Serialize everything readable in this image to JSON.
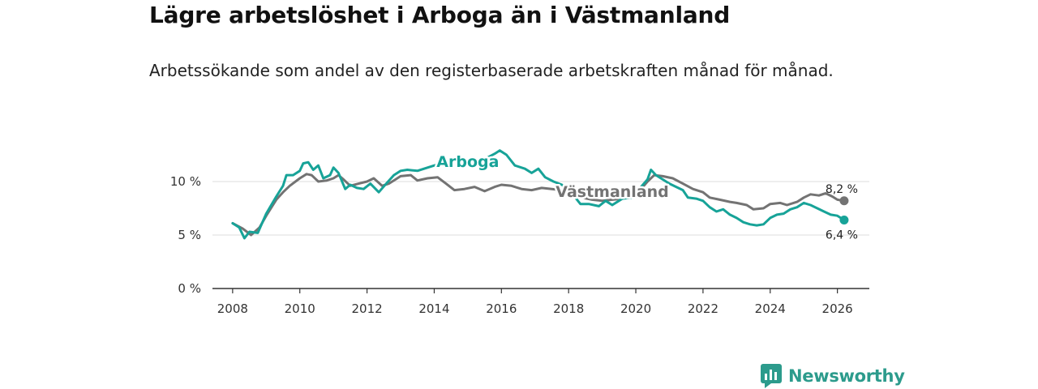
{
  "header": {
    "title": "Lägre arbetslöshet i Arboga än i Västmanland",
    "subtitle": "Arbetssökande som andel av den registerbaserade arbetskraften månad för månad."
  },
  "brand": {
    "name": "Newsworthy",
    "icon": "bar-chart-speech-icon",
    "color": "#2c9b8c"
  },
  "chart_data": {
    "type": "line",
    "title": "Lägre arbetslöshet i Arboga än i Västmanland",
    "subtitle": "Arbetssökande som andel av den registerbaserade arbetskraften månad för månad.",
    "xlabel": "",
    "ylabel": "",
    "xlim": [
      2007.4,
      2026.95
    ],
    "ylim": [
      0,
      10
    ],
    "x_ticks": [
      2008,
      2010,
      2012,
      2014,
      2016,
      2018,
      2020,
      2022,
      2024,
      2026
    ],
    "x_tick_labels": [
      "2008",
      "2010",
      "2012",
      "2014",
      "2016",
      "2018",
      "2020",
      "2022",
      "2024",
      "2026"
    ],
    "y_ticks": [
      0,
      5,
      10
    ],
    "y_tick_labels": [
      "0 %",
      "5 %",
      "10 %"
    ],
    "grid": "horizontal",
    "series": [
      {
        "name": "Arboga",
        "color": "#17a398",
        "end_label": "6,4 %",
        "points": [
          [
            2008.0,
            6.1
          ],
          [
            2008.2,
            5.7
          ],
          [
            2008.35,
            4.7
          ],
          [
            2008.5,
            5.3
          ],
          [
            2008.75,
            5.2
          ],
          [
            2009.0,
            7.0
          ],
          [
            2009.3,
            8.6
          ],
          [
            2009.5,
            9.6
          ],
          [
            2009.6,
            10.6
          ],
          [
            2009.8,
            10.6
          ],
          [
            2010.0,
            11.0
          ],
          [
            2010.1,
            11.7
          ],
          [
            2010.25,
            11.8
          ],
          [
            2010.4,
            11.1
          ],
          [
            2010.55,
            11.5
          ],
          [
            2010.7,
            10.3
          ],
          [
            2010.9,
            10.6
          ],
          [
            2011.0,
            11.3
          ],
          [
            2011.15,
            10.8
          ],
          [
            2011.35,
            9.3
          ],
          [
            2011.5,
            9.7
          ],
          [
            2011.7,
            9.4
          ],
          [
            2011.9,
            9.3
          ],
          [
            2012.1,
            9.8
          ],
          [
            2012.35,
            9.0
          ],
          [
            2012.6,
            9.9
          ],
          [
            2012.8,
            10.6
          ],
          [
            2013.0,
            11.0
          ],
          [
            2013.2,
            11.1
          ],
          [
            2013.5,
            11.0
          ],
          [
            2013.8,
            11.3
          ],
          [
            2014.0,
            11.5
          ],
          [
            2014.4,
            11.8
          ],
          [
            2014.8,
            12.1
          ],
          [
            2015.0,
            11.9
          ],
          [
            2015.2,
            11.7
          ],
          [
            2015.5,
            12.1
          ],
          [
            2015.8,
            12.6
          ],
          [
            2015.95,
            12.9
          ],
          [
            2016.15,
            12.5
          ],
          [
            2016.4,
            11.5
          ],
          [
            2016.7,
            11.2
          ],
          [
            2016.9,
            10.8
          ],
          [
            2017.1,
            11.2
          ],
          [
            2017.3,
            10.4
          ],
          [
            2017.55,
            10.0
          ],
          [
            2017.8,
            9.7
          ],
          [
            2018.0,
            9.2
          ],
          [
            2018.2,
            8.5
          ],
          [
            2018.35,
            7.9
          ],
          [
            2018.6,
            7.9
          ],
          [
            2018.9,
            7.7
          ],
          [
            2019.1,
            8.2
          ],
          [
            2019.3,
            7.8
          ],
          [
            2019.6,
            8.4
          ],
          [
            2019.9,
            8.5
          ],
          [
            2020.1,
            9.3
          ],
          [
            2020.35,
            10.2
          ],
          [
            2020.45,
            11.1
          ],
          [
            2020.6,
            10.6
          ],
          [
            2020.8,
            10.2
          ],
          [
            2021.0,
            9.8
          ],
          [
            2021.2,
            9.5
          ],
          [
            2021.4,
            9.2
          ],
          [
            2021.55,
            8.5
          ],
          [
            2021.8,
            8.4
          ],
          [
            2022.0,
            8.2
          ],
          [
            2022.2,
            7.6
          ],
          [
            2022.4,
            7.2
          ],
          [
            2022.6,
            7.4
          ],
          [
            2022.8,
            6.9
          ],
          [
            2023.0,
            6.6
          ],
          [
            2023.2,
            6.2
          ],
          [
            2023.4,
            6.0
          ],
          [
            2023.6,
            5.9
          ],
          [
            2023.8,
            6.0
          ],
          [
            2024.0,
            6.6
          ],
          [
            2024.2,
            6.9
          ],
          [
            2024.4,
            7.0
          ],
          [
            2024.6,
            7.4
          ],
          [
            2024.8,
            7.6
          ],
          [
            2025.0,
            8.0
          ],
          [
            2025.2,
            7.8
          ],
          [
            2025.4,
            7.5
          ],
          [
            2025.6,
            7.2
          ],
          [
            2025.8,
            6.9
          ],
          [
            2026.0,
            6.8
          ],
          [
            2026.1,
            6.6
          ],
          [
            2026.2,
            6.4
          ]
        ]
      },
      {
        "name": "Västmanland",
        "color": "#737373",
        "end_label": "8,2 %",
        "points": [
          [
            2008.0,
            6.1
          ],
          [
            2008.3,
            5.6
          ],
          [
            2008.55,
            5.0
          ],
          [
            2008.8,
            5.7
          ],
          [
            2009.0,
            6.8
          ],
          [
            2009.3,
            8.3
          ],
          [
            2009.5,
            9.0
          ],
          [
            2009.7,
            9.6
          ],
          [
            2010.0,
            10.3
          ],
          [
            2010.2,
            10.7
          ],
          [
            2010.35,
            10.6
          ],
          [
            2010.55,
            10.0
          ],
          [
            2010.8,
            10.1
          ],
          [
            2011.0,
            10.3
          ],
          [
            2011.15,
            10.6
          ],
          [
            2011.3,
            10.2
          ],
          [
            2011.5,
            9.6
          ],
          [
            2011.75,
            9.8
          ],
          [
            2012.0,
            10.0
          ],
          [
            2012.2,
            10.3
          ],
          [
            2012.45,
            9.6
          ],
          [
            2012.65,
            9.8
          ],
          [
            2012.85,
            10.2
          ],
          [
            2013.0,
            10.5
          ],
          [
            2013.3,
            10.6
          ],
          [
            2013.5,
            10.1
          ],
          [
            2013.8,
            10.3
          ],
          [
            2014.1,
            10.4
          ],
          [
            2014.35,
            9.8
          ],
          [
            2014.6,
            9.2
          ],
          [
            2014.9,
            9.3
          ],
          [
            2015.2,
            9.5
          ],
          [
            2015.5,
            9.1
          ],
          [
            2015.8,
            9.5
          ],
          [
            2016.0,
            9.7
          ],
          [
            2016.3,
            9.6
          ],
          [
            2016.6,
            9.3
          ],
          [
            2016.9,
            9.2
          ],
          [
            2017.2,
            9.4
          ],
          [
            2017.5,
            9.3
          ],
          [
            2017.8,
            9.2
          ],
          [
            2018.0,
            9.0
          ],
          [
            2018.2,
            8.8
          ],
          [
            2018.4,
            8.5
          ],
          [
            2018.7,
            8.3
          ],
          [
            2019.0,
            8.2
          ],
          [
            2019.3,
            8.3
          ],
          [
            2019.6,
            8.4
          ],
          [
            2019.9,
            8.7
          ],
          [
            2020.1,
            9.1
          ],
          [
            2020.35,
            10.0
          ],
          [
            2020.55,
            10.6
          ],
          [
            2020.8,
            10.5
          ],
          [
            2021.1,
            10.3
          ],
          [
            2021.4,
            9.8
          ],
          [
            2021.7,
            9.3
          ],
          [
            2022.0,
            9.0
          ],
          [
            2022.2,
            8.5
          ],
          [
            2022.5,
            8.3
          ],
          [
            2022.8,
            8.1
          ],
          [
            2023.0,
            8.0
          ],
          [
            2023.3,
            7.8
          ],
          [
            2023.5,
            7.4
          ],
          [
            2023.8,
            7.5
          ],
          [
            2024.0,
            7.9
          ],
          [
            2024.3,
            8.0
          ],
          [
            2024.5,
            7.8
          ],
          [
            2024.8,
            8.1
          ],
          [
            2025.0,
            8.5
          ],
          [
            2025.2,
            8.8
          ],
          [
            2025.45,
            8.7
          ],
          [
            2025.65,
            8.9
          ],
          [
            2025.85,
            8.6
          ],
          [
            2026.0,
            8.3
          ],
          [
            2026.2,
            8.2
          ]
        ]
      }
    ],
    "annotations": [
      {
        "text": "Arboga",
        "series": "Arboga"
      },
      {
        "text": "Västmanland",
        "series": "Västmanland"
      }
    ]
  }
}
